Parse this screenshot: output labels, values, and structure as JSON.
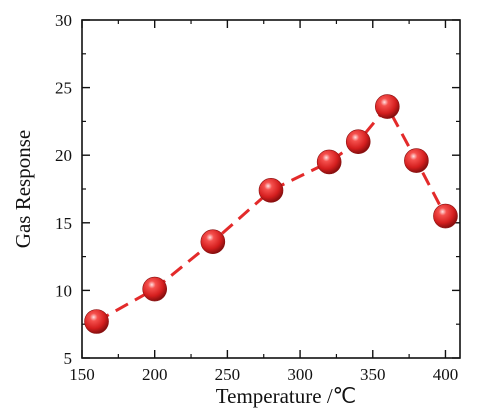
{
  "chart_data": {
    "type": "line",
    "xlabel": "Temperature /℃",
    "ylabel": "Gas Response",
    "xlim": [
      150,
      410
    ],
    "ylim": [
      5,
      30
    ],
    "xticks": [
      150,
      200,
      250,
      300,
      350,
      400
    ],
    "yticks": [
      5,
      10,
      15,
      20,
      25,
      30
    ],
    "grid": false,
    "series": [
      {
        "color": "#e32a2a",
        "line_style": "dashed",
        "marker": "sphere",
        "x": [
          160,
          200,
          240,
          280,
          320,
          340,
          360,
          380,
          400
        ],
        "y": [
          7.7,
          10.1,
          13.6,
          17.4,
          19.5,
          21.0,
          23.6,
          19.6,
          15.5
        ]
      }
    ]
  }
}
